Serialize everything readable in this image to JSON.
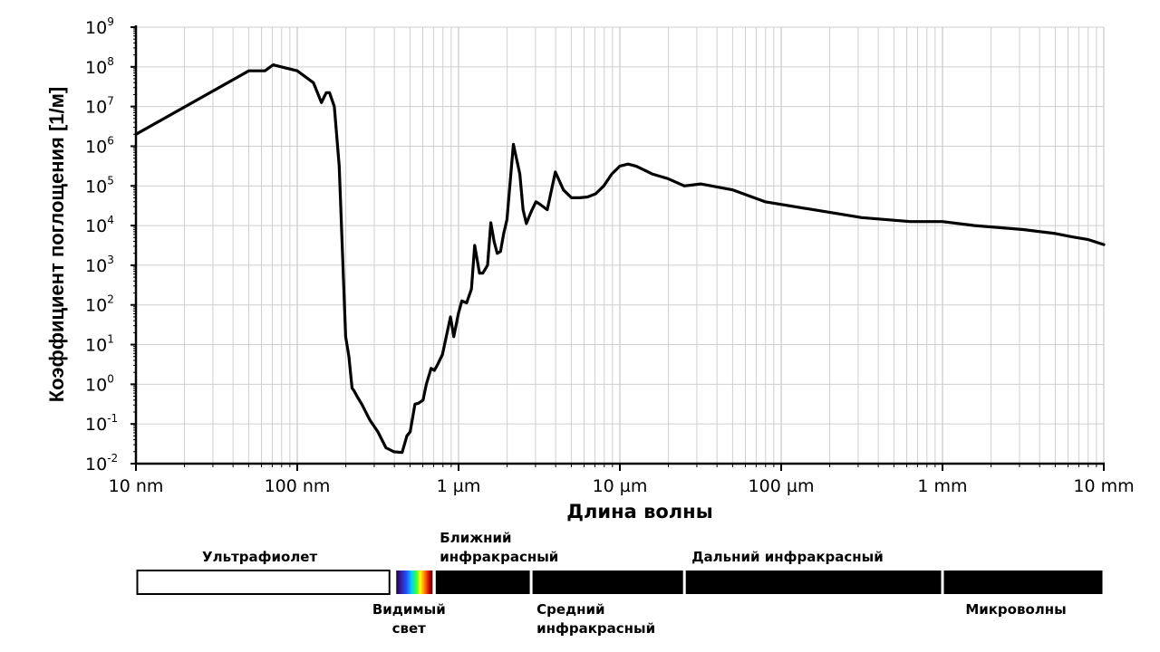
{
  "chart_data": {
    "type": "line",
    "title": "",
    "xlabel": "Длина волны",
    "ylabel": "Коэффициент поглощения [1/м]",
    "x_scale": "log",
    "y_scale": "log",
    "xlim_m": [
      1e-08,
      0.01
    ],
    "ylim": [
      0.01,
      1000000000.0
    ],
    "grid": true,
    "x_ticks": [
      {
        "value_m": 1e-08,
        "label": "10 nm"
      },
      {
        "value_m": 1e-07,
        "label": "100 nm"
      },
      {
        "value_m": 1e-06,
        "label": "1 µm"
      },
      {
        "value_m": 1e-05,
        "label": "10 µm"
      },
      {
        "value_m": 0.0001,
        "label": "100 µm"
      },
      {
        "value_m": 0.001,
        "label": "1 mm"
      },
      {
        "value_m": 0.01,
        "label": "10 mm"
      }
    ],
    "y_ticks": [
      {
        "exp": 9,
        "base": "10",
        "sup": "9"
      },
      {
        "exp": 8,
        "base": "10",
        "sup": "8"
      },
      {
        "exp": 7,
        "base": "10",
        "sup": "7"
      },
      {
        "exp": 6,
        "base": "10",
        "sup": "6"
      },
      {
        "exp": 5,
        "base": "10",
        "sup": "5"
      },
      {
        "exp": 4,
        "base": "10",
        "sup": "4"
      },
      {
        "exp": 3,
        "base": "10",
        "sup": "3"
      },
      {
        "exp": 2,
        "base": "10",
        "sup": "2"
      },
      {
        "exp": 1,
        "base": "10",
        "sup": "1"
      },
      {
        "exp": 0,
        "base": "10",
        "sup": "0"
      },
      {
        "exp": -1,
        "base": "10",
        "sup": "-1"
      },
      {
        "exp": -2,
        "base": "10",
        "sup": "-2"
      }
    ],
    "series": [
      {
        "name": "absorption",
        "x_log10_m": [
          -8.0,
          -7.3,
          -7.2,
          -7.15,
          -7.1,
          -7.0,
          -6.9,
          -6.88,
          -6.85,
          -6.82,
          -6.8,
          -6.77,
          -6.74,
          -6.7,
          -6.68,
          -6.66,
          -6.65,
          -6.63,
          -6.6,
          -6.55,
          -6.5,
          -6.45,
          -6.4,
          -6.35,
          -6.32,
          -6.3,
          -6.27,
          -6.25,
          -6.22,
          -6.2,
          -6.17,
          -6.15,
          -6.13,
          -6.1,
          -6.05,
          -6.03,
          -6.0,
          -5.98,
          -5.95,
          -5.92,
          -5.9,
          -5.87,
          -5.85,
          -5.82,
          -5.8,
          -5.78,
          -5.76,
          -5.74,
          -5.72,
          -5.7,
          -5.66,
          -5.62,
          -5.6,
          -5.58,
          -5.55,
          -5.52,
          -5.5,
          -5.45,
          -5.4,
          -5.35,
          -5.3,
          -5.25,
          -5.2,
          -5.15,
          -5.1,
          -5.05,
          -5.0,
          -4.95,
          -4.9,
          -4.85,
          -4.8,
          -4.7,
          -4.6,
          -4.5,
          -4.3,
          -4.1,
          -3.8,
          -3.5,
          -3.2,
          -3.0,
          -2.8,
          -2.5,
          -2.3,
          -2.2,
          -2.1,
          -2.0
        ],
        "y_log10": [
          6.3,
          7.9,
          7.9,
          8.05,
          8.0,
          7.9,
          7.6,
          7.4,
          7.1,
          7.35,
          7.35,
          7.0,
          5.5,
          1.2,
          0.7,
          -0.1,
          -0.15,
          -0.3,
          -0.5,
          -0.9,
          -1.2,
          -1.6,
          -1.7,
          -1.72,
          -1.3,
          -1.2,
          -0.5,
          -0.48,
          -0.4,
          0.0,
          0.4,
          0.35,
          0.5,
          0.75,
          1.7,
          1.2,
          1.8,
          2.1,
          2.05,
          2.4,
          3.5,
          2.8,
          2.8,
          3.0,
          4.07,
          3.6,
          3.3,
          3.35,
          3.8,
          4.15,
          6.05,
          5.3,
          4.4,
          4.05,
          4.35,
          4.6,
          4.55,
          4.4,
          5.35,
          4.9,
          4.7,
          4.7,
          4.72,
          4.8,
          5.0,
          5.3,
          5.5,
          5.55,
          5.5,
          5.4,
          5.3,
          5.18,
          5.0,
          5.05,
          4.9,
          4.6,
          4.4,
          4.2,
          4.1,
          4.1,
          4.0,
          3.9,
          3.8,
          3.72,
          3.65,
          3.52
        ]
      }
    ],
    "bands": [
      {
        "name": "uv",
        "label": [
          "Ультрафиолет"
        ],
        "from_log10_m": -8.0,
        "to_log10_m": -6.42,
        "fill": "#ffffff",
        "label_pos": "above"
      },
      {
        "name": "visible",
        "label": [
          "Видимый",
          "свет"
        ],
        "from_log10_m": -6.42,
        "to_log10_m": -6.15,
        "fill": "spectrum",
        "label_pos": "below"
      },
      {
        "name": "near-ir",
        "label": [
          "Ближний",
          "инфракрасный"
        ],
        "from_log10_m": -6.15,
        "to_log10_m": -5.55,
        "fill": "#000000",
        "label_pos": "above"
      },
      {
        "name": "mid-ir",
        "label": [
          "Средний",
          "инфракрасный"
        ],
        "from_log10_m": -5.55,
        "to_log10_m": -4.6,
        "fill": "#000000",
        "label_pos": "below"
      },
      {
        "name": "far-ir",
        "label": [
          "Дальний инфракрасный"
        ],
        "from_log10_m": -4.6,
        "to_log10_m": -3.0,
        "fill": "#000000",
        "label_pos": "above"
      },
      {
        "name": "microwaves",
        "label": [
          "Микроволны"
        ],
        "from_log10_m": -3.0,
        "to_log10_m": -2.0,
        "fill": "#000000",
        "label_pos": "below"
      }
    ]
  }
}
